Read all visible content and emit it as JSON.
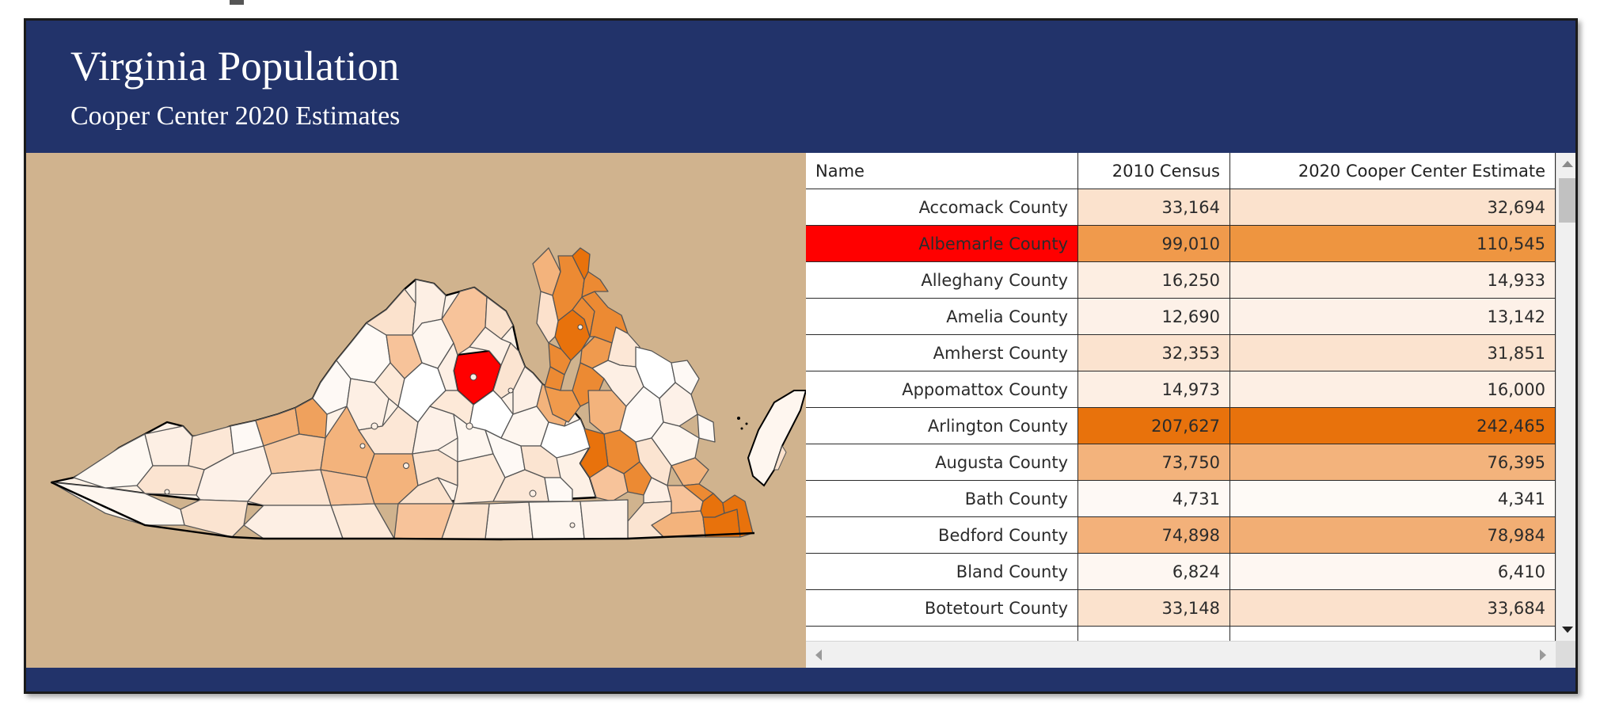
{
  "dashboard": {
    "title": "Virginia Population",
    "subtitle": "Cooper Center 2020 Estimates"
  },
  "colors": {
    "header_bg": "#22336a",
    "map_bg": "#d0b38e",
    "selected": "#ff0000",
    "accent_dark": "#e8720c"
  },
  "map": {
    "selected_county": "Albemarle County",
    "icon": "virginia-county-choropleth-map"
  },
  "table": {
    "columns": [
      "Name",
      "2010 Census",
      "2020 Cooper Center Estimate"
    ],
    "rows": [
      {
        "name": "Accomack County",
        "census_2010": "33,164",
        "estimate_2020": "32,694",
        "c2010": "#fbe2cd",
        "c2020": "#fbe2cd"
      },
      {
        "name": "Albemarle County",
        "census_2010": "99,010",
        "estimate_2020": "110,545",
        "c2010": "#f09a4c",
        "c2020": "#ee9540",
        "selected": true
      },
      {
        "name": "Alleghany County",
        "census_2010": "16,250",
        "estimate_2020": "14,933",
        "c2010": "#fdeee2",
        "c2020": "#fdf0e6"
      },
      {
        "name": "Amelia County",
        "census_2010": "12,690",
        "estimate_2020": "13,142",
        "c2010": "#fdf1e8",
        "c2020": "#fdf1e8"
      },
      {
        "name": "Amherst County",
        "census_2010": "32,353",
        "estimate_2020": "31,851",
        "c2010": "#fbe3cf",
        "c2020": "#fbe3cf"
      },
      {
        "name": "Appomattox County",
        "census_2010": "14,973",
        "estimate_2020": "16,000",
        "c2010": "#fdefe4",
        "c2020": "#fdefe4"
      },
      {
        "name": "Arlington County",
        "census_2010": "207,627",
        "estimate_2020": "242,465",
        "c2010": "#e8720c",
        "c2020": "#e8720c"
      },
      {
        "name": "Augusta County",
        "census_2010": "73,750",
        "estimate_2020": "76,395",
        "c2010": "#f3b37c",
        "c2020": "#f3b37c"
      },
      {
        "name": "Bath County",
        "census_2010": "4,731",
        "estimate_2020": "4,341",
        "c2010": "#fef9f5",
        "c2020": "#fefaf6"
      },
      {
        "name": "Bedford County",
        "census_2010": "74,898",
        "estimate_2020": "78,984",
        "c2010": "#f3b17a",
        "c2020": "#f2ae74"
      },
      {
        "name": "Bland County",
        "census_2010": "6,824",
        "estimate_2020": "6,410",
        "c2010": "#fef7f2",
        "c2020": "#fef7f2"
      },
      {
        "name": "Botetourt County",
        "census_2010": "33,148",
        "estimate_2020": "33,684",
        "c2010": "#fbe2cd",
        "c2020": "#fbe1cc"
      },
      {
        "name": "",
        "census_2010": "",
        "estimate_2020": "",
        "c2010": "#ffffff",
        "c2020": "#ffffff"
      }
    ]
  }
}
